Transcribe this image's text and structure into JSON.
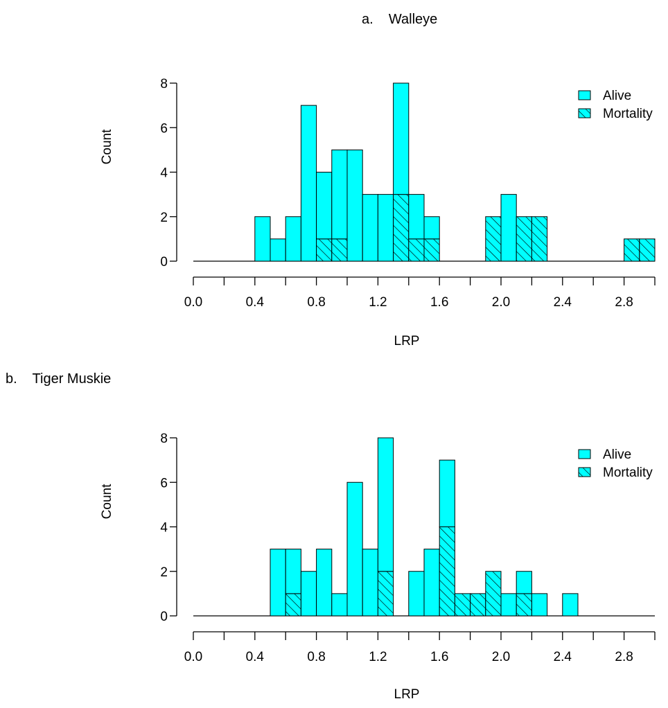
{
  "colors": {
    "bar_fill": "#00ffff",
    "stroke": "#000000",
    "background": "#ffffff"
  },
  "panels": [
    {
      "title": "a.    Walleye",
      "xlabel": "LRP",
      "ylabel": "Count",
      "legend": {
        "alive_label": "Alive",
        "mortality_label": "Mortality"
      },
      "x_ticks": [
        "0.0",
        "0.4",
        "0.8",
        "1.2",
        "1.6",
        "2.0",
        "2.4",
        "2.8"
      ],
      "y_ticks": [
        "0",
        "2",
        "4",
        "6",
        "8"
      ]
    },
    {
      "title": "b.    Tiger Muskie",
      "xlabel": "LRP",
      "ylabel": "Count",
      "legend": {
        "alive_label": "Alive",
        "mortality_label": "Mortality"
      },
      "x_ticks": [
        "0.0",
        "0.4",
        "0.8",
        "1.2",
        "1.6",
        "2.0",
        "2.4",
        "2.8"
      ],
      "y_ticks": [
        "0",
        "2",
        "4",
        "6",
        "8"
      ]
    }
  ],
  "chart_data": [
    {
      "type": "bar",
      "title": "a.    Walleye",
      "xlabel": "LRP",
      "ylabel": "Count",
      "bin_width": 0.1,
      "bin_starts": [
        0.4,
        0.5,
        0.6,
        0.7,
        0.8,
        0.9,
        1.0,
        1.1,
        1.2,
        1.3,
        1.4,
        1.5,
        1.9,
        2.0,
        2.1,
        2.2,
        2.8,
        2.9
      ],
      "series": [
        {
          "name": "Alive",
          "values": [
            2,
            1,
            2,
            7,
            3,
            4,
            5,
            3,
            3,
            5,
            2,
            1,
            0,
            3,
            0,
            0,
            0,
            0
          ]
        },
        {
          "name": "Mortality",
          "values": [
            0,
            0,
            0,
            0,
            1,
            1,
            0,
            0,
            0,
            3,
            1,
            1,
            2,
            0,
            2,
            2,
            1,
            1
          ]
        }
      ],
      "stacked": true,
      "xlim": [
        0.0,
        3.0
      ],
      "ylim": [
        0,
        8
      ],
      "x_ticks": [
        0.0,
        0.4,
        0.8,
        1.2,
        1.6,
        2.0,
        2.4,
        2.8
      ],
      "y_ticks": [
        0,
        2,
        4,
        6,
        8
      ],
      "legend_position": "top-right",
      "grid": false
    },
    {
      "type": "bar",
      "title": "b.    Tiger Muskie",
      "xlabel": "LRP",
      "ylabel": "Count",
      "bin_width": 0.1,
      "bin_starts": [
        0.5,
        0.6,
        0.7,
        0.8,
        0.9,
        1.0,
        1.1,
        1.2,
        1.4,
        1.5,
        1.6,
        1.7,
        1.8,
        1.9,
        2.0,
        2.1,
        2.2,
        2.4
      ],
      "series": [
        {
          "name": "Alive",
          "values": [
            3,
            2,
            2,
            3,
            1,
            6,
            3,
            6,
            2,
            3,
            3,
            0,
            0,
            0,
            1,
            1,
            1,
            1
          ]
        },
        {
          "name": "Mortality",
          "values": [
            0,
            1,
            0,
            0,
            0,
            0,
            0,
            2,
            0,
            0,
            4,
            1,
            1,
            2,
            0,
            1,
            0,
            0
          ]
        }
      ],
      "stacked": true,
      "xlim": [
        0.0,
        3.0
      ],
      "ylim": [
        0,
        8
      ],
      "x_ticks": [
        0.0,
        0.4,
        0.8,
        1.2,
        1.6,
        2.0,
        2.4,
        2.8
      ],
      "y_ticks": [
        0,
        2,
        4,
        6,
        8
      ],
      "legend_position": "top-right",
      "grid": false
    }
  ]
}
